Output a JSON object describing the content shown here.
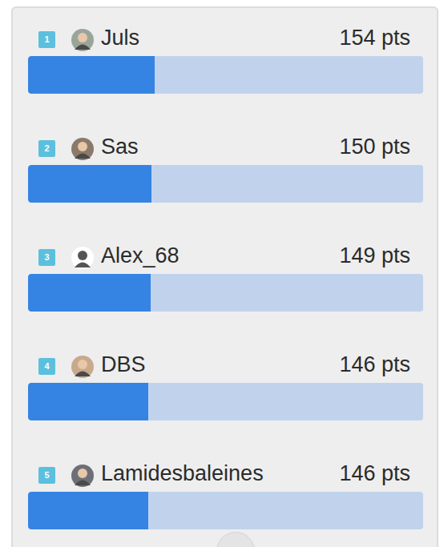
{
  "chart_data": {
    "type": "bar",
    "orientation": "horizontal",
    "ranks": [
      1,
      2,
      3,
      4,
      5
    ],
    "categories": [
      "Juls",
      "Sas",
      "Alex_68",
      "DBS",
      "Lamidesbaleines"
    ],
    "values": [
      154,
      150,
      149,
      146,
      146
    ],
    "value_labels": [
      "154 pts",
      "150 pts",
      "149 pts",
      "146 pts",
      "146 pts"
    ],
    "xlim": [
      0,
      480
    ],
    "color": "#3584e4",
    "data_labels": true,
    "tick_labels": false
  }
}
